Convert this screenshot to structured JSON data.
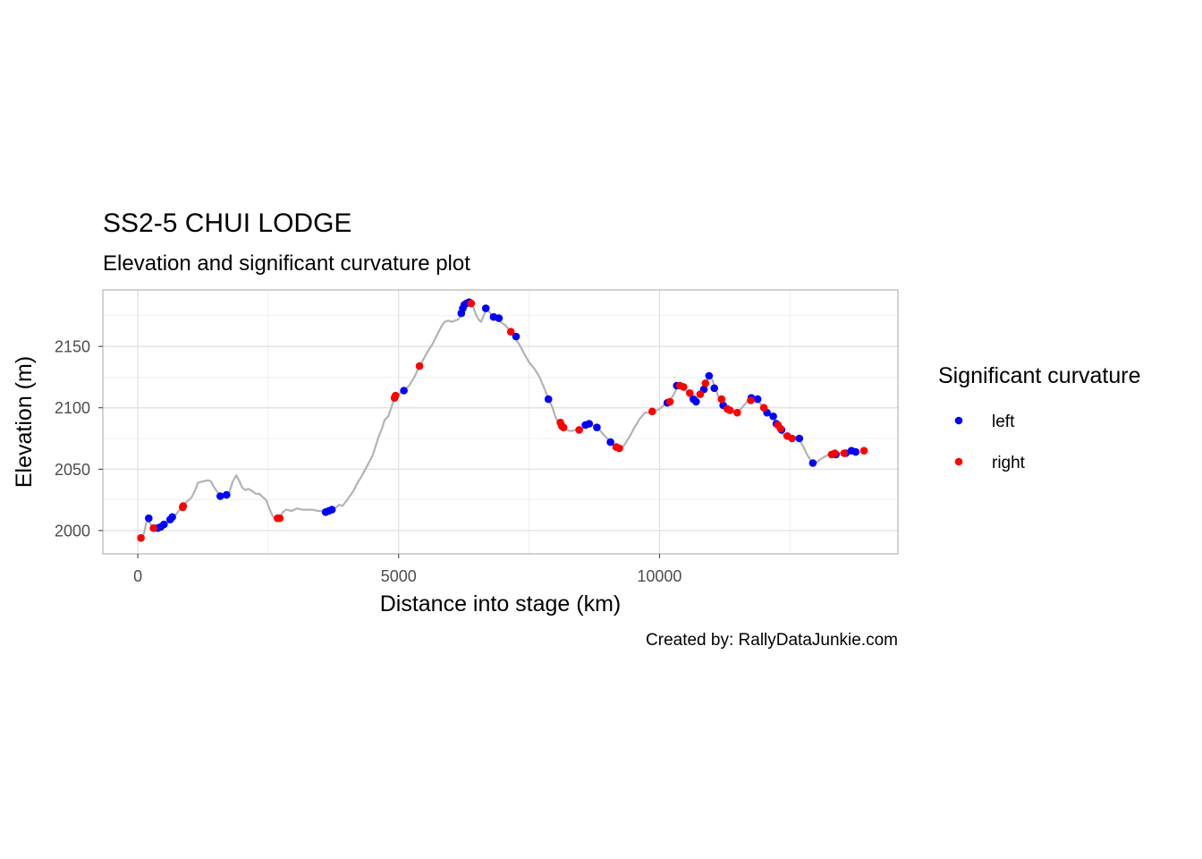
{
  "chart_data": {
    "type": "scatter",
    "title": "SS2-5 CHUI LODGE",
    "subtitle": "Elevation and significant curvature plot",
    "xlabel": "Distance into stage (km)",
    "ylabel": "Elevation (m)",
    "caption": "Created by: RallyDataJunkie.com",
    "xlim": [
      -670,
      14570
    ],
    "ylim": [
      1981,
      2196
    ],
    "x_ticks": [
      0,
      5000,
      10000
    ],
    "x_tick_labels": [
      "0",
      "5000",
      "10000"
    ],
    "y_ticks": [
      2000,
      2050,
      2100,
      2150
    ],
    "y_tick_labels": [
      "2000",
      "2050",
      "2100",
      "2150"
    ],
    "grid": true,
    "legend": {
      "title": "Significant curvature",
      "position": "right",
      "entries": [
        {
          "label": "left",
          "color": "#0000ff"
        },
        {
          "label": "right",
          "color": "#ff0000"
        }
      ]
    },
    "colors": {
      "left": "#0000ff",
      "right": "#ff0000",
      "profile": "#b3b3b3"
    },
    "elevation_profile": [
      [
        0,
        1994
      ],
      [
        60,
        1993
      ],
      [
        120,
        1998
      ],
      [
        160,
        2006
      ],
      [
        200,
        2008
      ],
      [
        260,
        2004
      ],
      [
        320,
        2002
      ],
      [
        400,
        2002
      ],
      [
        470,
        2004
      ],
      [
        560,
        2006
      ],
      [
        650,
        2010
      ],
      [
        730,
        2013
      ],
      [
        800,
        2017
      ],
      [
        880,
        2021
      ],
      [
        950,
        2024
      ],
      [
        1030,
        2027
      ],
      [
        1100,
        2033
      ],
      [
        1150,
        2039
      ],
      [
        1250,
        2040
      ],
      [
        1350,
        2041
      ],
      [
        1400,
        2040
      ],
      [
        1450,
        2036
      ],
      [
        1500,
        2033
      ],
      [
        1560,
        2029
      ],
      [
        1620,
        2028
      ],
      [
        1700,
        2028
      ],
      [
        1760,
        2032
      ],
      [
        1820,
        2040
      ],
      [
        1890,
        2045
      ],
      [
        1950,
        2040
      ],
      [
        2000,
        2035
      ],
      [
        2060,
        2033
      ],
      [
        2120,
        2034
      ],
      [
        2200,
        2032
      ],
      [
        2260,
        2030
      ],
      [
        2330,
        2030
      ],
      [
        2400,
        2027
      ],
      [
        2460,
        2025
      ],
      [
        2520,
        2018
      ],
      [
        2570,
        2013
      ],
      [
        2620,
        2010
      ],
      [
        2680,
        2010
      ],
      [
        2720,
        2010
      ],
      [
        2780,
        2015
      ],
      [
        2840,
        2017
      ],
      [
        2950,
        2016
      ],
      [
        3050,
        2018
      ],
      [
        3150,
        2017
      ],
      [
        3250,
        2017
      ],
      [
        3350,
        2017
      ],
      [
        3450,
        2016
      ],
      [
        3520,
        2016
      ],
      [
        3580,
        2015
      ],
      [
        3640,
        2016
      ],
      [
        3700,
        2017
      ],
      [
        3750,
        2017
      ],
      [
        3800,
        2019
      ],
      [
        3860,
        2021
      ],
      [
        3920,
        2020
      ],
      [
        3960,
        2022
      ],
      [
        4030,
        2026
      ],
      [
        4080,
        2029
      ],
      [
        4130,
        2032
      ],
      [
        4200,
        2038
      ],
      [
        4300,
        2045
      ],
      [
        4400,
        2053
      ],
      [
        4500,
        2061
      ],
      [
        4560,
        2069
      ],
      [
        4620,
        2077
      ],
      [
        4680,
        2083
      ],
      [
        4730,
        2090
      ],
      [
        4800,
        2093
      ],
      [
        4860,
        2100
      ],
      [
        4900,
        2106
      ],
      [
        4950,
        2108
      ],
      [
        5050,
        2113
      ],
      [
        5100,
        2114
      ],
      [
        5200,
        2118
      ],
      [
        5300,
        2125
      ],
      [
        5400,
        2134
      ],
      [
        5480,
        2140
      ],
      [
        5560,
        2146
      ],
      [
        5650,
        2152
      ],
      [
        5720,
        2158
      ],
      [
        5780,
        2163
      ],
      [
        5830,
        2167
      ],
      [
        5880,
        2170
      ],
      [
        5950,
        2171
      ],
      [
        6020,
        2170
      ],
      [
        6080,
        2171
      ],
      [
        6140,
        2172
      ],
      [
        6190,
        2175
      ],
      [
        6220,
        2177
      ],
      [
        6240,
        2178
      ],
      [
        6280,
        2182
      ],
      [
        6320,
        2185
      ],
      [
        6380,
        2186
      ],
      [
        6430,
        2182
      ],
      [
        6480,
        2176
      ],
      [
        6530,
        2172
      ],
      [
        6580,
        2170
      ],
      [
        6630,
        2175
      ],
      [
        6680,
        2180
      ],
      [
        6740,
        2178
      ],
      [
        6800,
        2174
      ],
      [
        6870,
        2173
      ],
      [
        6950,
        2170
      ],
      [
        7050,
        2167
      ],
      [
        7150,
        2162
      ],
      [
        7230,
        2157
      ],
      [
        7320,
        2151
      ],
      [
        7420,
        2143
      ],
      [
        7500,
        2137
      ],
      [
        7600,
        2132
      ],
      [
        7700,
        2125
      ],
      [
        7800,
        2115
      ],
      [
        7870,
        2107
      ],
      [
        7950,
        2100
      ],
      [
        8000,
        2093
      ],
      [
        8060,
        2088
      ],
      [
        8120,
        2084
      ],
      [
        8200,
        2082
      ],
      [
        8300,
        2081
      ],
      [
        8400,
        2082
      ],
      [
        8500,
        2082
      ],
      [
        8580,
        2086
      ],
      [
        8650,
        2087
      ],
      [
        8750,
        2085
      ],
      [
        8850,
        2082
      ],
      [
        8950,
        2077
      ],
      [
        9050,
        2073
      ],
      [
        9120,
        2070
      ],
      [
        9200,
        2067
      ],
      [
        9270,
        2067
      ],
      [
        9330,
        2070
      ],
      [
        9420,
        2076
      ],
      [
        9520,
        2084
      ],
      [
        9620,
        2091
      ],
      [
        9720,
        2096
      ],
      [
        9810,
        2096
      ],
      [
        9900,
        2097
      ],
      [
        10000,
        2099
      ],
      [
        10080,
        2102
      ],
      [
        10150,
        2104
      ],
      [
        10220,
        2107
      ],
      [
        10300,
        2113
      ],
      [
        10350,
        2118
      ],
      [
        10450,
        2117
      ],
      [
        10550,
        2112
      ],
      [
        10600,
        2109
      ],
      [
        10650,
        2108
      ],
      [
        10700,
        2107
      ],
      [
        10780,
        2112
      ],
      [
        10850,
        2117
      ],
      [
        10900,
        2120
      ],
      [
        10950,
        2126
      ],
      [
        11000,
        2124
      ],
      [
        11060,
        2117
      ],
      [
        11130,
        2109
      ],
      [
        11180,
        2104
      ],
      [
        11260,
        2101
      ],
      [
        11360,
        2098
      ],
      [
        11460,
        2096
      ],
      [
        11560,
        2099
      ],
      [
        11660,
        2104
      ],
      [
        11760,
        2108
      ],
      [
        11860,
        2107
      ],
      [
        11960,
        2102
      ],
      [
        12060,
        2098
      ],
      [
        12160,
        2094
      ],
      [
        12250,
        2087
      ],
      [
        12340,
        2080
      ],
      [
        12430,
        2075
      ],
      [
        12530,
        2075
      ],
      [
        12620,
        2076
      ],
      [
        12680,
        2074
      ],
      [
        12760,
        2068
      ],
      [
        12840,
        2061
      ],
      [
        12920,
        2056
      ],
      [
        13000,
        2055
      ],
      [
        13080,
        2058
      ],
      [
        13160,
        2060
      ],
      [
        13250,
        2062
      ],
      [
        13350,
        2062
      ],
      [
        13450,
        2063
      ],
      [
        13550,
        2064
      ],
      [
        13650,
        2064
      ],
      [
        13730,
        2065
      ],
      [
        13810,
        2065
      ]
    ],
    "series": [
      {
        "name": "left",
        "points": [
          [
            210,
            2010
          ],
          [
            380,
            2002
          ],
          [
            440,
            2003
          ],
          [
            500,
            2005
          ],
          [
            620,
            2009
          ],
          [
            660,
            2011
          ],
          [
            1580,
            2028
          ],
          [
            1700,
            2029
          ],
          [
            3600,
            2015
          ],
          [
            3660,
            2016
          ],
          [
            3720,
            2017
          ],
          [
            5100,
            2114
          ],
          [
            6200,
            2177
          ],
          [
            6230,
            2181
          ],
          [
            6260,
            2184
          ],
          [
            6300,
            2185
          ],
          [
            6350,
            2186
          ],
          [
            6670,
            2181
          ],
          [
            6820,
            2174
          ],
          [
            6920,
            2173
          ],
          [
            7250,
            2158
          ],
          [
            7870,
            2107
          ],
          [
            8580,
            2086
          ],
          [
            8650,
            2087
          ],
          [
            8800,
            2084
          ],
          [
            9060,
            2072
          ],
          [
            10150,
            2104
          ],
          [
            10330,
            2118
          ],
          [
            10650,
            2107
          ],
          [
            10700,
            2105
          ],
          [
            10850,
            2115
          ],
          [
            10950,
            2126
          ],
          [
            11050,
            2116
          ],
          [
            11220,
            2102
          ],
          [
            11760,
            2108
          ],
          [
            11880,
            2107
          ],
          [
            12060,
            2096
          ],
          [
            12180,
            2093
          ],
          [
            12240,
            2087
          ],
          [
            12340,
            2082
          ],
          [
            12680,
            2075
          ],
          [
            12940,
            2055
          ],
          [
            13380,
            2062
          ],
          [
            13570,
            2063
          ],
          [
            13680,
            2065
          ],
          [
            13760,
            2064
          ]
        ]
      },
      {
        "name": "right",
        "points": [
          [
            60,
            1994
          ],
          [
            300,
            2002
          ],
          [
            860,
            2019
          ],
          [
            870,
            2020
          ],
          [
            2680,
            2010
          ],
          [
            2720,
            2010
          ],
          [
            4920,
            2108
          ],
          [
            4940,
            2110
          ],
          [
            5400,
            2134
          ],
          [
            6390,
            2185
          ],
          [
            7150,
            2162
          ],
          [
            8100,
            2088
          ],
          [
            8130,
            2085
          ],
          [
            8160,
            2084
          ],
          [
            8460,
            2082
          ],
          [
            9170,
            2068
          ],
          [
            9230,
            2067
          ],
          [
            9860,
            2097
          ],
          [
            10200,
            2105
          ],
          [
            10390,
            2118
          ],
          [
            10460,
            2117
          ],
          [
            10580,
            2112
          ],
          [
            10780,
            2111
          ],
          [
            10880,
            2120
          ],
          [
            11190,
            2107
          ],
          [
            11300,
            2099
          ],
          [
            11350,
            2098
          ],
          [
            11490,
            2096
          ],
          [
            11750,
            2106
          ],
          [
            12000,
            2100
          ],
          [
            12270,
            2086
          ],
          [
            12320,
            2083
          ],
          [
            12450,
            2077
          ],
          [
            12540,
            2075
          ],
          [
            13300,
            2062
          ],
          [
            13360,
            2063
          ],
          [
            13540,
            2063
          ],
          [
            13920,
            2065
          ]
        ]
      }
    ]
  }
}
